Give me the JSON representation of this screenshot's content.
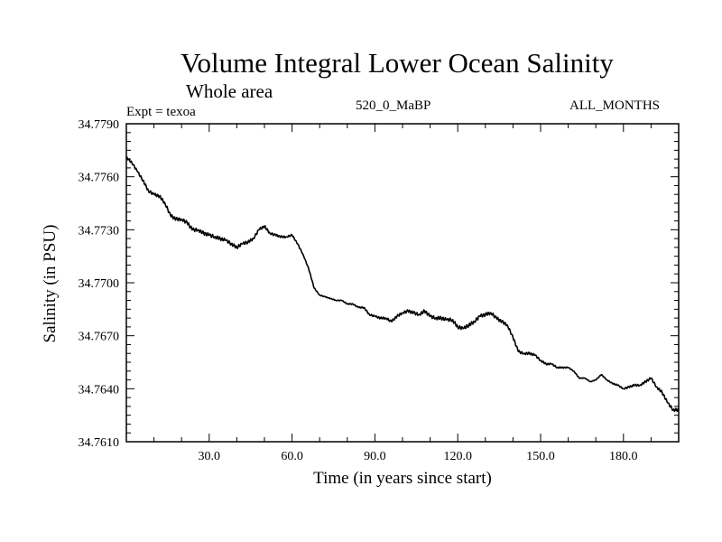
{
  "chart_data": {
    "type": "line",
    "title": "Volume Integral Lower Ocean Salinity",
    "subtitle": "Whole area",
    "experiment_label": "Expt = texoa",
    "run_label": "520_0_MaBP",
    "months_label": "ALL_MONTHS",
    "xlabel": "Time (in years since start)",
    "ylabel": "Salinity (in PSU)",
    "xlim": [
      0,
      200
    ],
    "ylim": [
      34.761,
      34.779
    ],
    "x_ticks": [
      30,
      60,
      90,
      120,
      150,
      180
    ],
    "x_tick_labels": [
      "30.0",
      "60.0",
      "90.0",
      "120.0",
      "150.0",
      "180.0"
    ],
    "y_ticks": [
      34.761,
      34.764,
      34.767,
      34.77,
      34.773,
      34.776,
      34.779
    ],
    "y_tick_labels": [
      "34.7610",
      "34.7640",
      "34.7670",
      "34.7700",
      "34.7730",
      "34.7760",
      "34.7790"
    ],
    "grid": false,
    "series": [
      {
        "name": "Salinity",
        "x": [
          0,
          2,
          4,
          6,
          8,
          10,
          12,
          14,
          16,
          18,
          20,
          22,
          24,
          26,
          28,
          30,
          32,
          34,
          36,
          38,
          40,
          42,
          44,
          46,
          48,
          50,
          52,
          54,
          56,
          58,
          60,
          62,
          64,
          66,
          68,
          70,
          72,
          74,
          76,
          78,
          80,
          82,
          84,
          86,
          88,
          90,
          92,
          94,
          96,
          98,
          100,
          102,
          104,
          106,
          108,
          110,
          112,
          114,
          116,
          118,
          120,
          122,
          124,
          126,
          128,
          130,
          132,
          134,
          136,
          138,
          140,
          142,
          144,
          146,
          148,
          150,
          152,
          154,
          156,
          158,
          160,
          162,
          164,
          166,
          168,
          170,
          172,
          174,
          176,
          178,
          180,
          182,
          184,
          186,
          188,
          190,
          192,
          194,
          196,
          198,
          200
        ],
        "values": [
          34.7771,
          34.7768,
          34.7763,
          34.7758,
          34.7752,
          34.775,
          34.7749,
          34.7745,
          34.7738,
          34.7736,
          34.7736,
          34.7734,
          34.773,
          34.773,
          34.7728,
          34.7727,
          34.7726,
          34.7725,
          34.7724,
          34.7722,
          34.772,
          34.7722,
          34.7723,
          34.7725,
          34.773,
          34.7732,
          34.7728,
          34.7727,
          34.7726,
          34.7726,
          34.7727,
          34.7722,
          34.7716,
          34.7708,
          34.7697,
          34.7693,
          34.7692,
          34.7691,
          34.769,
          34.769,
          34.7688,
          34.7688,
          34.7686,
          34.7686,
          34.7682,
          34.7681,
          34.768,
          34.768,
          34.7678,
          34.7681,
          34.7683,
          34.7684,
          34.7683,
          34.7682,
          34.7684,
          34.7681,
          34.768,
          34.768,
          34.7679,
          34.7679,
          34.7675,
          34.7674,
          34.7676,
          34.7678,
          34.7681,
          34.7682,
          34.7683,
          34.768,
          34.7678,
          34.7676,
          34.7669,
          34.7661,
          34.766,
          34.766,
          34.7659,
          34.7656,
          34.7654,
          34.7654,
          34.7652,
          34.7652,
          34.7652,
          34.765,
          34.7646,
          34.7646,
          34.7644,
          34.7645,
          34.7648,
          34.7645,
          34.7643,
          34.7642,
          34.764,
          34.7641,
          34.7642,
          34.7642,
          34.7644,
          34.7646,
          34.7641,
          34.7638,
          34.7632,
          34.7628,
          34.7628
        ]
      }
    ]
  }
}
